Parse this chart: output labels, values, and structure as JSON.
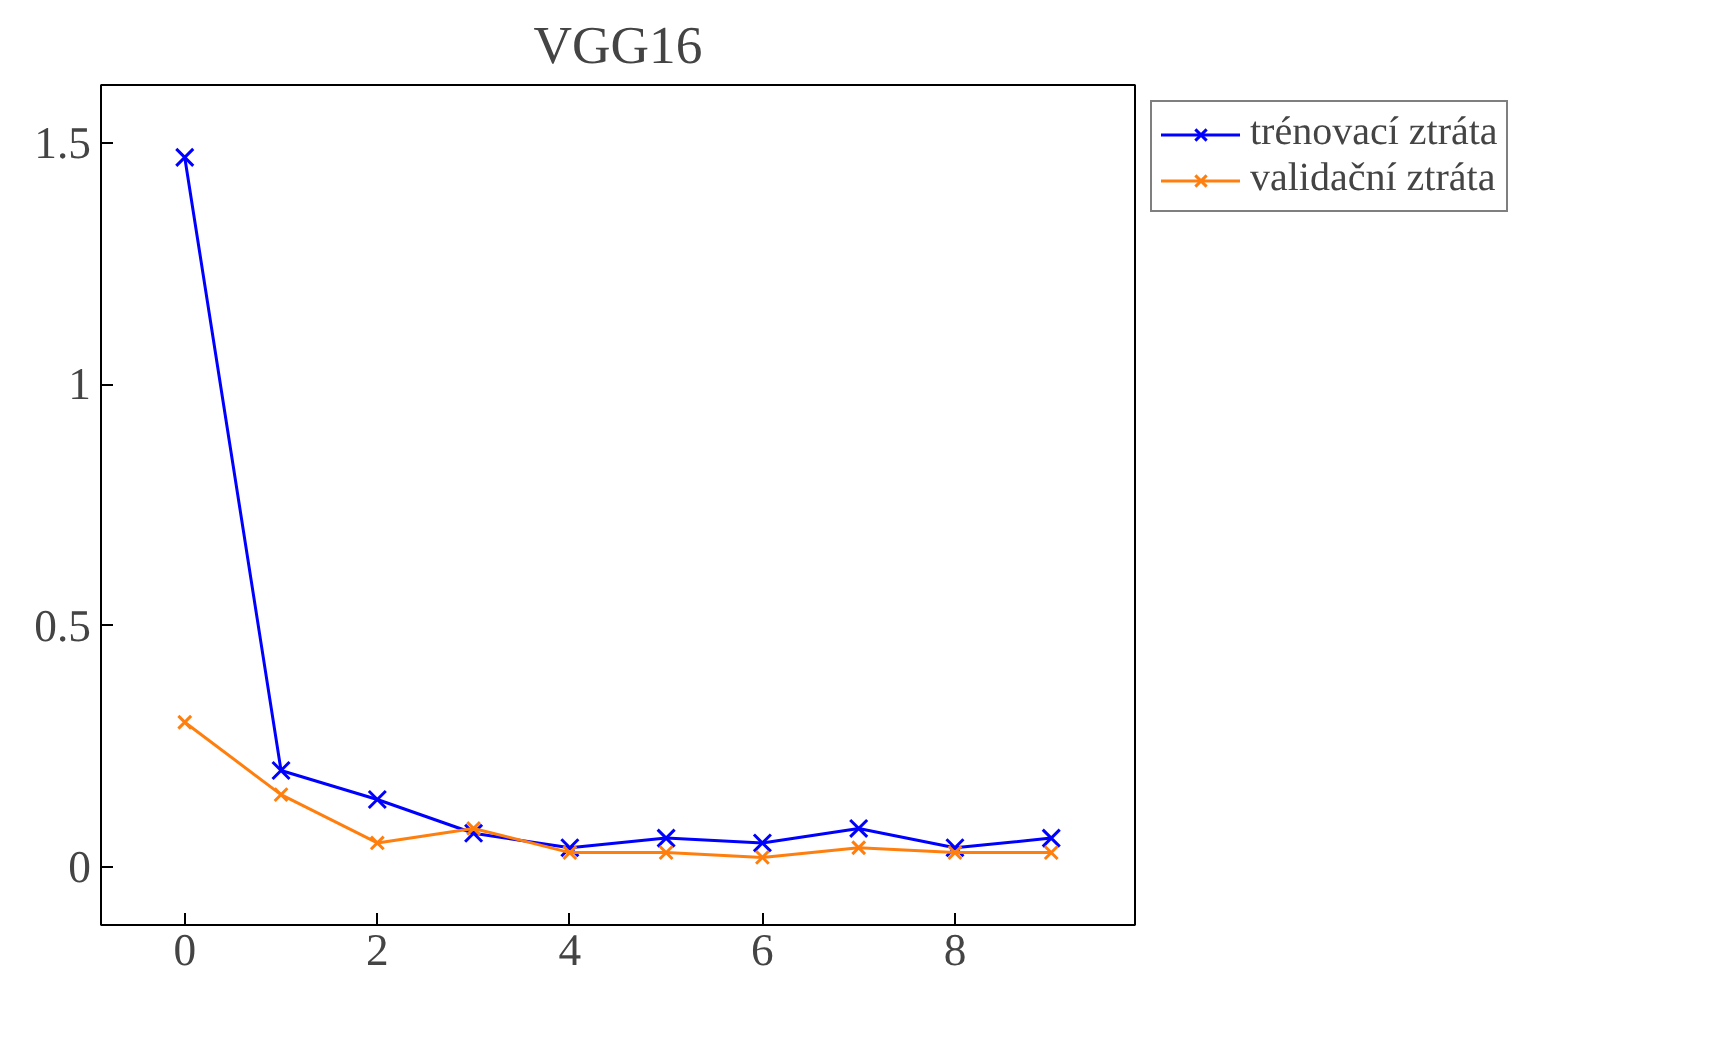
{
  "chart_data": {
    "type": "line",
    "title": "VGG16",
    "x": [
      0,
      1,
      2,
      3,
      4,
      5,
      6,
      7,
      8,
      9
    ],
    "series": [
      {
        "name": "trénovací ztráta",
        "color": "#0000ff",
        "values": [
          1.47,
          0.2,
          0.14,
          0.07,
          0.04,
          0.06,
          0.05,
          0.08,
          0.04,
          0.06
        ]
      },
      {
        "name": "validační ztráta",
        "color": "#ff7f0e",
        "values": [
          0.3,
          0.15,
          0.05,
          0.08,
          0.03,
          0.03,
          0.02,
          0.04,
          0.03,
          0.03
        ]
      }
    ],
    "xlim": [
      -0.87,
      9.87
    ],
    "ylim": [
      -0.12,
      1.62
    ],
    "xticks": [
      0,
      2,
      4,
      6,
      8
    ],
    "yticks": [
      0,
      0.5,
      1,
      1.5
    ],
    "grid": false,
    "legend": "top right outside",
    "marker": "cross",
    "line_style": "solid"
  }
}
